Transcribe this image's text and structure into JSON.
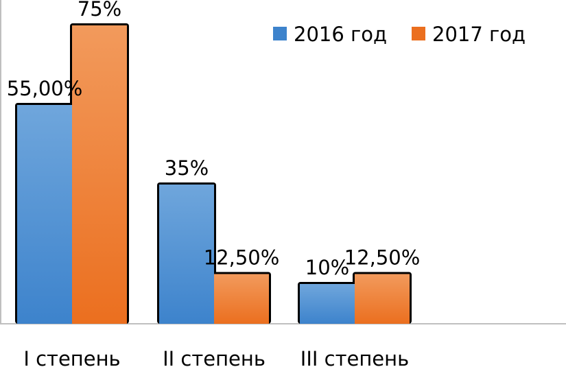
{
  "chart_data": {
    "type": "bar",
    "categories": [
      "I степень",
      "II степень",
      "III степень"
    ],
    "series": [
      {
        "name": "2016 год",
        "values": [
          55,
          35,
          10
        ],
        "labels": [
          "55,00%",
          "35%",
          "10%"
        ],
        "color_top": "#6fa6dc",
        "color_bottom": "#3d83cc"
      },
      {
        "name": "2017 год",
        "values": [
          75,
          12.5,
          12.5
        ],
        "labels": [
          "75%",
          "12,50%",
          "12,50%"
        ],
        "color_top": "#f29a5c",
        "color_bottom": "#eb6f1f"
      }
    ],
    "ylim": [
      0,
      80
    ],
    "grid": false,
    "legend": "top-right"
  }
}
